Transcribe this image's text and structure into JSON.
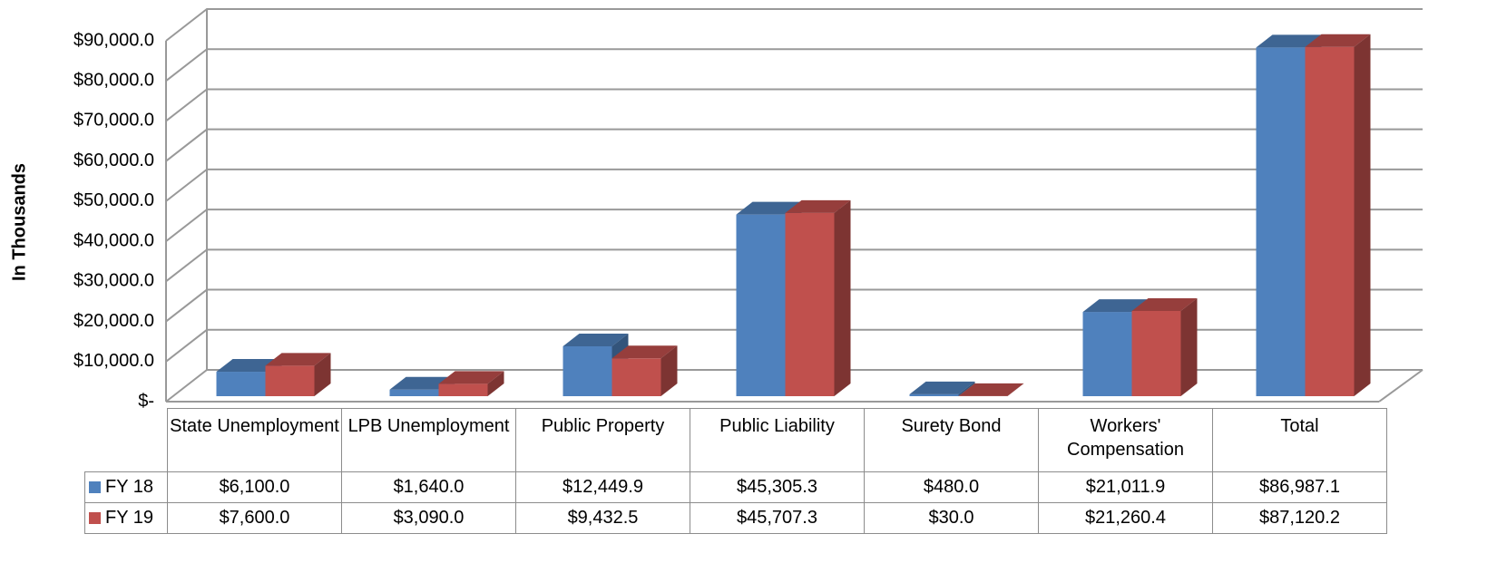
{
  "chart_data": {
    "type": "bar",
    "y_label": "In Thousands",
    "categories": [
      "State Unemployment",
      "LPB Unemployment",
      "Public Property",
      "Public Liability",
      "Surety Bond",
      "Workers' Compensation",
      "Total"
    ],
    "series": [
      {
        "name": "FY 18",
        "color": "#4f81bd",
        "values": [
          6100,
          1640,
          12449.9,
          45305.3,
          480,
          21011.9,
          86987.1
        ],
        "value_labels": [
          "$6,100.0",
          "$1,640.0",
          "$12,449.9",
          "$45,305.3",
          "$480.0",
          "$21,011.9",
          "$86,987.1"
        ]
      },
      {
        "name": "FY 19",
        "color": "#c0504d",
        "values": [
          7600,
          3090,
          9432.5,
          45707.3,
          30,
          21260.4,
          87120.2
        ],
        "value_labels": [
          "$7,600.0",
          "$3,090.0",
          "$9,432.5",
          "$45,707.3",
          "$30.0",
          "$21,260.4",
          "$87,120.2"
        ]
      }
    ],
    "ylim": [
      0,
      90000
    ],
    "yticks": [
      {
        "value": 0,
        "label": "$-"
      },
      {
        "value": 10000,
        "label": "$10,000.0"
      },
      {
        "value": 20000,
        "label": "$20,000.0"
      },
      {
        "value": 30000,
        "label": "$30,000.0"
      },
      {
        "value": 40000,
        "label": "$40,000.0"
      },
      {
        "value": 50000,
        "label": "$50,000.0"
      },
      {
        "value": 60000,
        "label": "$60,000.0"
      },
      {
        "value": 70000,
        "label": "$70,000.0"
      },
      {
        "value": 80000,
        "label": "$80,000.0"
      },
      {
        "value": 90000,
        "label": "$90,000.0"
      }
    ],
    "grid": true
  }
}
